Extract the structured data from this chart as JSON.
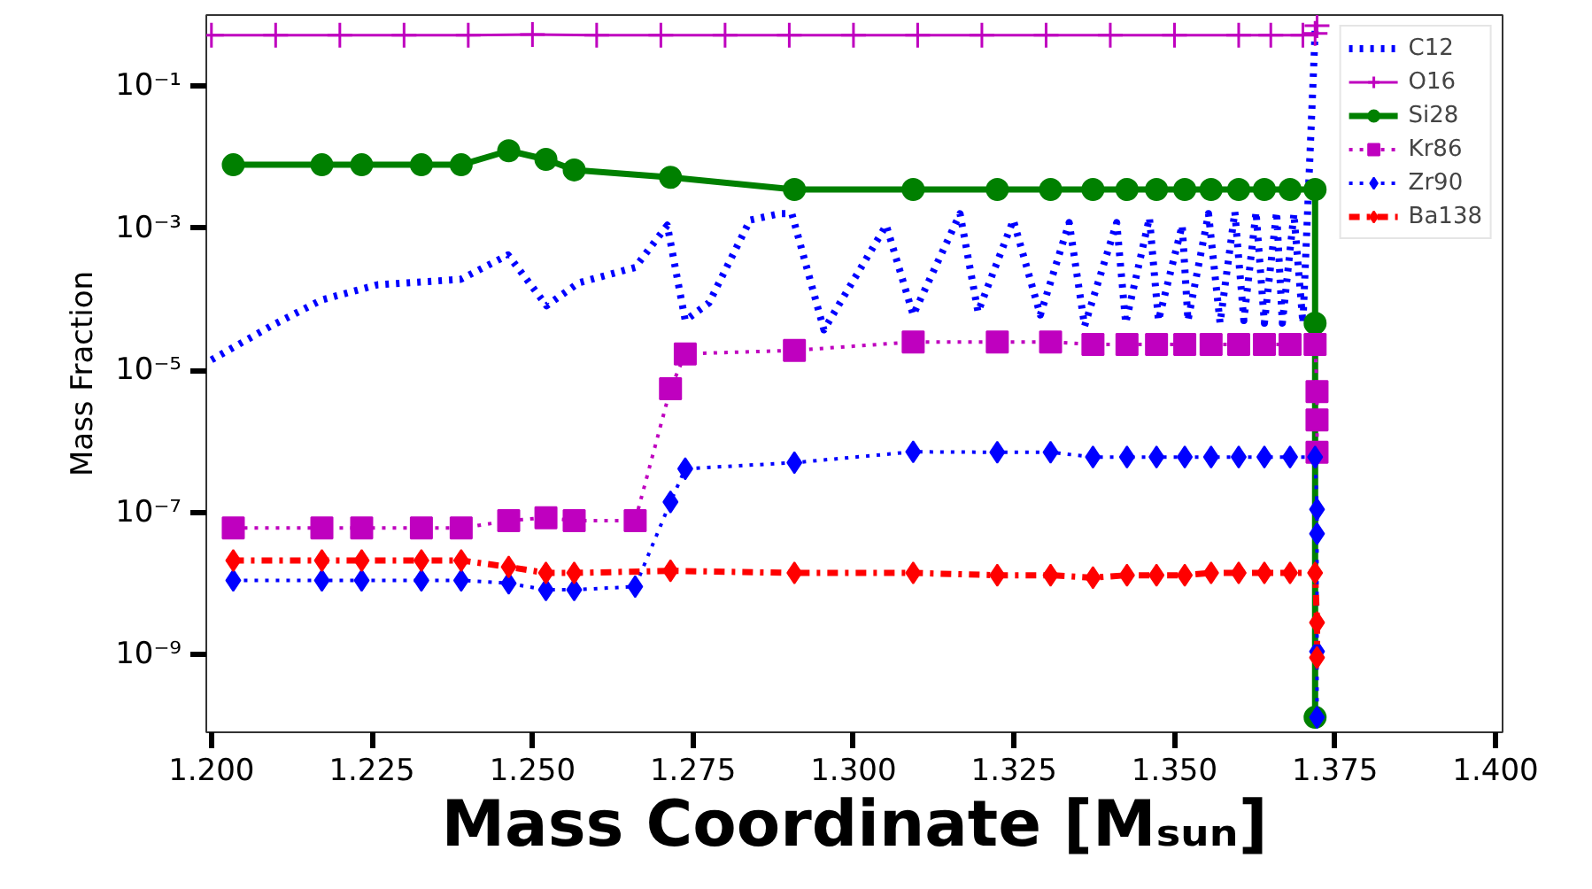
{
  "chart_data": {
    "type": "line",
    "xlabel": "Mass Coordinate [Mₛᵤₙ]",
    "ylabel": "Mass Fraction",
    "log": "y",
    "grid": false,
    "legend": "top right",
    "xlim": [
      1.1992,
      1.4011
    ],
    "ylim": [
      8e-11,
      1
    ],
    "xticks": [
      {
        "value": 1.2,
        "label": "1.200"
      },
      {
        "value": 1.225,
        "label": "1.225"
      },
      {
        "value": 1.25,
        "label": "1.250"
      },
      {
        "value": 1.275,
        "label": "1.275"
      },
      {
        "value": 1.3,
        "label": "1.300"
      },
      {
        "value": 1.325,
        "label": "1.325"
      },
      {
        "value": 1.35,
        "label": "1.350"
      },
      {
        "value": 1.375,
        "label": "1.375"
      },
      {
        "value": 1.4,
        "label": "1.400"
      }
    ],
    "yticks": [
      {
        "value": 1e-09,
        "label": "10⁻⁹"
      },
      {
        "value": 1e-07,
        "label": "10⁻⁷"
      },
      {
        "value": 1e-05,
        "label": "10⁻⁵"
      },
      {
        "value": 0.001,
        "label": "10⁻³"
      },
      {
        "value": 0.1,
        "label": "10⁻¹"
      }
    ],
    "series": [
      {
        "name": "C12",
        "color": "#0000ff",
        "marker": "none",
        "line_style": "dotted",
        "x": [
          1.2,
          1.2093,
          1.2172,
          1.2259,
          1.2388,
          1.2462,
          1.2522,
          1.2572,
          1.266,
          1.271,
          1.2738,
          1.2775,
          1.2839,
          1.2885,
          1.2904,
          1.2954,
          1.3051,
          1.3093,
          1.3166,
          1.3194,
          1.3249,
          1.3291,
          1.3336,
          1.336,
          1.341,
          1.3424,
          1.3461,
          1.3475,
          1.3512,
          1.3521,
          1.3553,
          1.3571,
          1.3594,
          1.3608,
          1.3627,
          1.364,
          1.3659,
          1.3668,
          1.3686,
          1.37,
          1.3718,
          1.3719
        ],
        "values": [
          1.4e-05,
          4.2e-05,
          9.8e-05,
          0.00016,
          0.00019,
          0.00042,
          8.1e-05,
          0.00017,
          0.00028,
          0.0011,
          5e-05,
          8.9e-05,
          0.0013,
          0.0016,
          0.0016,
          3.7e-05,
          0.0011,
          6e-05,
          0.0016,
          6.6e-05,
          0.0013,
          6e-05,
          0.0012,
          4.2e-05,
          0.0012,
          4.6e-05,
          0.0014,
          5e-05,
          0.0011,
          5e-05,
          0.0016,
          4.6e-05,
          0.0017,
          5e-05,
          0.0017,
          4.6e-05,
          0.0017,
          4.6e-05,
          0.0016,
          4.6e-05,
          0.34,
          0.6
        ]
      },
      {
        "name": "O16",
        "color": "#bf00bf",
        "marker": "cross",
        "line_style": "solid",
        "x": [
          1.2,
          1.21,
          1.22,
          1.23,
          1.24,
          1.25,
          1.26,
          1.27,
          1.28,
          1.29,
          1.3,
          1.31,
          1.32,
          1.33,
          1.34,
          1.35,
          1.36,
          1.365,
          1.37,
          1.3719,
          1.3722
        ],
        "values": [
          0.52,
          0.52,
          0.52,
          0.52,
          0.52,
          0.53,
          0.52,
          0.52,
          0.52,
          0.52,
          0.52,
          0.52,
          0.52,
          0.52,
          0.52,
          0.52,
          0.52,
          0.52,
          0.52,
          0.55,
          0.71
        ]
      },
      {
        "name": "Si28",
        "color": "#008000",
        "marker": "circle",
        "line_style": "solid",
        "x": [
          1.2034,
          1.2172,
          1.2234,
          1.2327,
          1.2389,
          1.2463,
          1.2521,
          1.2565,
          1.2715,
          1.2908,
          1.3093,
          1.3224,
          1.3307,
          1.3373,
          1.3426,
          1.3472,
          1.3516,
          1.3557,
          1.36,
          1.364,
          1.368,
          1.3719,
          1.3719,
          1.3719
        ],
        "values": [
          0.0078,
          0.0078,
          0.0078,
          0.0078,
          0.0078,
          0.0123,
          0.0093,
          0.0066,
          0.0052,
          0.0035,
          0.0035,
          0.0035,
          0.0035,
          0.0035,
          0.0035,
          0.0035,
          0.0035,
          0.0035,
          0.0035,
          0.0035,
          0.0035,
          0.0035,
          4.6e-05,
          1.3e-10
        ]
      },
      {
        "name": "Kr86",
        "color": "#bf00bf",
        "marker": "square",
        "line_style": "dotted",
        "x": [
          1.2034,
          1.2172,
          1.2234,
          1.2327,
          1.2389,
          1.2463,
          1.2521,
          1.2565,
          1.266,
          1.2715,
          1.2738,
          1.2908,
          1.3093,
          1.3224,
          1.3307,
          1.3373,
          1.3426,
          1.3472,
          1.3516,
          1.3557,
          1.36,
          1.364,
          1.368,
          1.3719,
          1.3722,
          1.3722,
          1.3722
        ],
        "values": [
          6e-08,
          6e-08,
          6e-08,
          6e-08,
          6e-08,
          7.6e-08,
          8.4e-08,
          7.6e-08,
          7.6e-08,
          5.5e-06,
          1.7e-05,
          1.9e-05,
          2.5e-05,
          2.5e-05,
          2.5e-05,
          2.3e-05,
          2.3e-05,
          2.3e-05,
          2.3e-05,
          2.3e-05,
          2.3e-05,
          2.3e-05,
          2.3e-05,
          2.3e-05,
          5e-06,
          2e-06,
          7e-07
        ]
      },
      {
        "name": "Zr90",
        "color": "#0000ff",
        "marker": "diamond",
        "line_style": "dotted",
        "x": [
          1.2034,
          1.2172,
          1.2234,
          1.2327,
          1.2389,
          1.2463,
          1.2521,
          1.2565,
          1.266,
          1.2715,
          1.2738,
          1.2908,
          1.3093,
          1.3224,
          1.3307,
          1.3373,
          1.3426,
          1.3472,
          1.3516,
          1.3557,
          1.36,
          1.364,
          1.368,
          1.3719,
          1.3722,
          1.3722,
          1.3722,
          1.3722
        ],
        "values": [
          1.1e-08,
          1.1e-08,
          1.1e-08,
          1.1e-08,
          1.1e-08,
          1e-08,
          8.1e-09,
          8.1e-09,
          9e-09,
          1.4e-07,
          4.1e-07,
          5e-07,
          7.1e-07,
          7e-07,
          7e-07,
          6e-07,
          6e-07,
          6e-07,
          6e-07,
          6e-07,
          6e-07,
          6e-07,
          6e-07,
          6e-07,
          1.1e-07,
          5e-08,
          1.1e-09,
          1.3e-10
        ]
      },
      {
        "name": "Ba138",
        "color": "#ff0000",
        "marker": "diamond",
        "line_style": "dashed",
        "x": [
          1.2034,
          1.2172,
          1.2234,
          1.2327,
          1.2389,
          1.2463,
          1.2521,
          1.2565,
          1.2715,
          1.2908,
          1.3093,
          1.3224,
          1.3307,
          1.3373,
          1.3426,
          1.3472,
          1.3516,
          1.3557,
          1.36,
          1.364,
          1.368,
          1.3719,
          1.3722,
          1.3722
        ],
        "values": [
          2.1e-08,
          2.1e-08,
          2.1e-08,
          2.1e-08,
          2.1e-08,
          1.7e-08,
          1.4e-08,
          1.4e-08,
          1.5e-08,
          1.4e-08,
          1.4e-08,
          1.3e-08,
          1.3e-08,
          1.2e-08,
          1.3e-08,
          1.3e-08,
          1.3e-08,
          1.4e-08,
          1.4e-08,
          1.4e-08,
          1.4e-08,
          1.4e-08,
          2.8e-09,
          9e-10
        ]
      }
    ]
  }
}
